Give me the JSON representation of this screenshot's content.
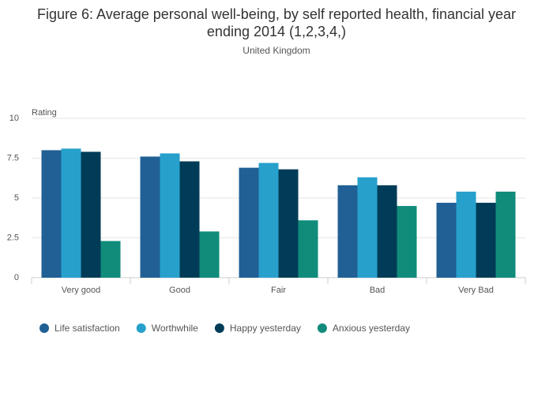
{
  "chart_data": {
    "type": "bar",
    "title": "Figure 6: Average personal well-being, by self reported health, financial year ending 2014 (1,2,3,4,)",
    "subtitle": "United Kingdom",
    "y_axis_label": "Rating",
    "categories": [
      "Very good",
      "Good",
      "Fair",
      "Bad",
      "Very Bad"
    ],
    "series": [
      {
        "name": "Life satisfaction",
        "color": "#206095",
        "values": [
          8.0,
          7.6,
          6.9,
          5.8,
          4.7
        ]
      },
      {
        "name": "Worthwhile",
        "color": "#27a0cc",
        "values": [
          8.1,
          7.8,
          7.2,
          6.3,
          5.4
        ]
      },
      {
        "name": "Happy yesterday",
        "color": "#003c57",
        "values": [
          7.9,
          7.3,
          6.8,
          5.8,
          4.7
        ]
      },
      {
        "name": "Anxious yesterday",
        "color": "#118c7b",
        "values": [
          2.3,
          2.9,
          3.6,
          4.5,
          5.4
        ]
      }
    ],
    "ylim": [
      0,
      10
    ],
    "yticks": [
      0,
      2.5,
      5,
      7.5,
      10
    ],
    "grid": true,
    "legend": "bottom"
  }
}
